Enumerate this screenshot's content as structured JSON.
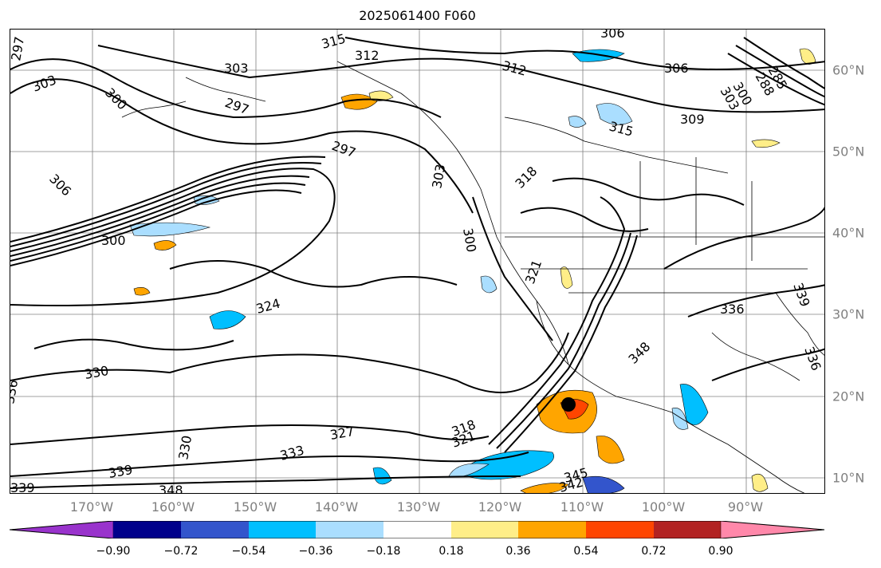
{
  "title": "2025061400 F060",
  "longitude_labels": [
    "170°W",
    "160°W",
    "150°W",
    "140°W",
    "130°W",
    "120°W",
    "110°W",
    "100°W",
    "90°W"
  ],
  "latitude_labels": [
    "60°N",
    "50°N",
    "40°N",
    "30°N",
    "20°N",
    "10°N"
  ],
  "contour_labels": [
    "306",
    "315",
    "312",
    "303",
    "297",
    "300",
    "297",
    "306",
    "309",
    "312",
    "306",
    "309",
    "315",
    "303",
    "297",
    "318",
    "303",
    "300",
    "321",
    "324",
    "336",
    "339",
    "330",
    "330",
    "327",
    "333",
    "339",
    "348",
    "345",
    "342",
    "318",
    "321",
    "348",
    "336",
    "285",
    "288",
    "303",
    "300"
  ],
  "colorbar": {
    "tick_labels": [
      "−0.90",
      "−0.72",
      "−0.54",
      "−0.36",
      "−0.18",
      "0.18",
      "0.36",
      "0.54",
      "0.72",
      "0.90"
    ],
    "colors": [
      "#9933cc",
      "#00008b",
      "#3355cc",
      "#00bfff",
      "#aadeff",
      "#ffffff",
      "#ffee88",
      "#ffa500",
      "#ff4500",
      "#b22222",
      "#ff88aa"
    ]
  },
  "colors": {
    "frame": "#000000",
    "grid": "#808080",
    "contour": "#000000",
    "axis_label": "#808080"
  }
}
